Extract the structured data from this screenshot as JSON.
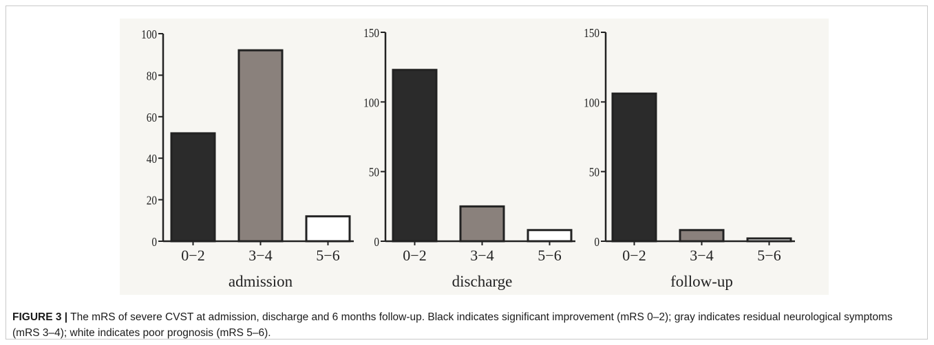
{
  "chart_data": [
    {
      "type": "bar",
      "categories": [
        "0−2",
        "3−4",
        "5−6"
      ],
      "values": [
        52,
        92,
        12
      ],
      "xlabel": "admission",
      "ylabel": "",
      "ylim": [
        0,
        100
      ],
      "yticks": [
        "0",
        "20",
        "40",
        "60",
        "80",
        "100"
      ],
      "colors": [
        "#2b2b2b",
        "#8a817c",
        "#ffffff"
      ]
    },
    {
      "type": "bar",
      "categories": [
        "0−2",
        "3−4",
        "5−6"
      ],
      "values": [
        123,
        25,
        8
      ],
      "xlabel": "discharge",
      "ylabel": "",
      "ylim": [
        0,
        150
      ],
      "yticks": [
        "0",
        "50",
        "100",
        "150"
      ],
      "colors": [
        "#2b2b2b",
        "#8a817c",
        "#ffffff"
      ]
    },
    {
      "type": "bar",
      "categories": [
        "0−2",
        "3−4",
        "5−6"
      ],
      "values": [
        106,
        8,
        2
      ],
      "xlabel": "follow-up",
      "ylabel": "",
      "ylim": [
        0,
        150
      ],
      "yticks": [
        "0",
        "50",
        "100",
        "150"
      ],
      "colors": [
        "#2b2b2b",
        "#8a817c",
        "#ffffff"
      ]
    }
  ],
  "caption": {
    "label": "FIGURE 3 |",
    "text": " The mRS of severe CVST at admission, discharge and 6 months follow-up. Black indicates significant improvement (mRS 0–2); gray indicates residual neurological symptoms (mRS 3–4); white indicates poor prognosis (mRS 5–6)."
  }
}
